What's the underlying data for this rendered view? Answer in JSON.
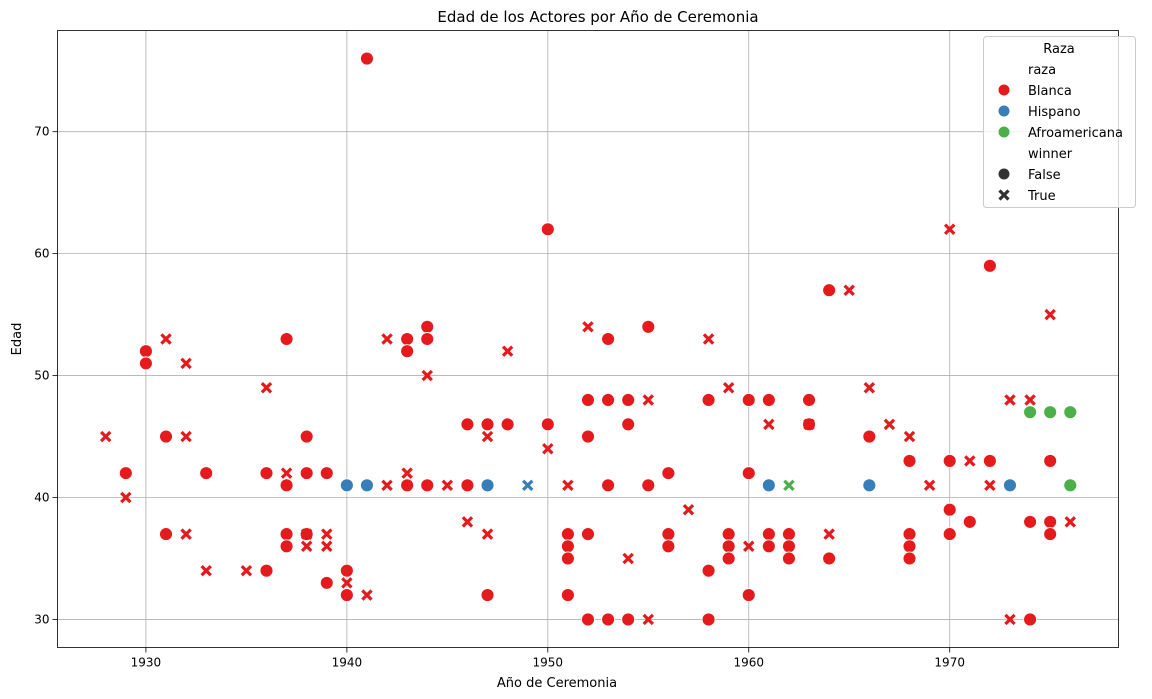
{
  "chart_data": {
    "type": "scatter",
    "title": "Edad de los Actores por Año de Ceremonia",
    "xlabel": "Año de Ceremonia",
    "ylabel": "Edad",
    "xlim": [
      1925.6,
      1978.4
    ],
    "ylim": [
      27.7,
      78.3
    ],
    "xticks": [
      1930,
      1940,
      1950,
      1960,
      1970
    ],
    "yticks": [
      30,
      40,
      50,
      60,
      70
    ],
    "grid": true,
    "legend": {
      "title": "Raza",
      "placement": "top-right",
      "hue_title": "raza",
      "style_title": "winner",
      "hue_entries": [
        {
          "label": "Blanca",
          "color": "#e41a1c"
        },
        {
          "label": "Hispano",
          "color": "#377eb8"
        },
        {
          "label": "Afroamericana",
          "color": "#4daf4a"
        }
      ],
      "style_entries": [
        {
          "label": "False",
          "marker": "circle"
        },
        {
          "label": "True",
          "marker": "x"
        }
      ]
    },
    "series": [
      {
        "name": "Blanca",
        "color": "#e41a1c",
        "points": [
          {
            "x": 1928,
            "y": 45,
            "winner": true
          },
          {
            "x": 1929,
            "y": 42,
            "winner": false
          },
          {
            "x": 1929,
            "y": 40,
            "winner": true
          },
          {
            "x": 1930,
            "y": 52,
            "winner": false
          },
          {
            "x": 1930,
            "y": 51,
            "winner": false
          },
          {
            "x": 1931,
            "y": 53,
            "winner": true
          },
          {
            "x": 1931,
            "y": 45,
            "winner": false
          },
          {
            "x": 1931,
            "y": 37,
            "winner": false
          },
          {
            "x": 1932,
            "y": 51,
            "winner": true
          },
          {
            "x": 1932,
            "y": 45,
            "winner": true
          },
          {
            "x": 1932,
            "y": 37,
            "winner": true
          },
          {
            "x": 1933,
            "y": 42,
            "winner": false
          },
          {
            "x": 1933,
            "y": 34,
            "winner": true
          },
          {
            "x": 1935,
            "y": 34,
            "winner": true
          },
          {
            "x": 1936,
            "y": 49,
            "winner": true
          },
          {
            "x": 1936,
            "y": 42,
            "winner": false
          },
          {
            "x": 1936,
            "y": 34,
            "winner": false
          },
          {
            "x": 1937,
            "y": 53,
            "winner": false
          },
          {
            "x": 1937,
            "y": 42,
            "winner": true
          },
          {
            "x": 1937,
            "y": 41,
            "winner": false
          },
          {
            "x": 1937,
            "y": 37,
            "winner": false
          },
          {
            "x": 1937,
            "y": 36,
            "winner": false
          },
          {
            "x": 1938,
            "y": 45,
            "winner": false
          },
          {
            "x": 1938,
            "y": 42,
            "winner": false
          },
          {
            "x": 1938,
            "y": 37,
            "winner": false
          },
          {
            "x": 1938,
            "y": 37,
            "winner": true
          },
          {
            "x": 1938,
            "y": 36,
            "winner": true
          },
          {
            "x": 1939,
            "y": 42,
            "winner": false
          },
          {
            "x": 1939,
            "y": 37,
            "winner": true
          },
          {
            "x": 1939,
            "y": 36,
            "winner": true
          },
          {
            "x": 1939,
            "y": 33,
            "winner": false
          },
          {
            "x": 1940,
            "y": 34,
            "winner": false
          },
          {
            "x": 1940,
            "y": 33,
            "winner": true
          },
          {
            "x": 1940,
            "y": 32,
            "winner": false
          },
          {
            "x": 1941,
            "y": 76,
            "winner": false
          },
          {
            "x": 1941,
            "y": 32,
            "winner": true
          },
          {
            "x": 1942,
            "y": 53,
            "winner": true
          },
          {
            "x": 1942,
            "y": 41,
            "winner": true
          },
          {
            "x": 1943,
            "y": 53,
            "winner": false
          },
          {
            "x": 1943,
            "y": 52,
            "winner": false
          },
          {
            "x": 1943,
            "y": 42,
            "winner": true
          },
          {
            "x": 1943,
            "y": 41,
            "winner": false
          },
          {
            "x": 1944,
            "y": 54,
            "winner": false
          },
          {
            "x": 1944,
            "y": 53,
            "winner": false
          },
          {
            "x": 1944,
            "y": 50,
            "winner": true
          },
          {
            "x": 1944,
            "y": 41,
            "winner": false
          },
          {
            "x": 1945,
            "y": 41,
            "winner": true
          },
          {
            "x": 1946,
            "y": 46,
            "winner": false
          },
          {
            "x": 1946,
            "y": 41,
            "winner": false
          },
          {
            "x": 1946,
            "y": 38,
            "winner": true
          },
          {
            "x": 1947,
            "y": 46,
            "winner": false
          },
          {
            "x": 1947,
            "y": 45,
            "winner": true
          },
          {
            "x": 1947,
            "y": 37,
            "winner": true
          },
          {
            "x": 1947,
            "y": 32,
            "winner": false
          },
          {
            "x": 1948,
            "y": 52,
            "winner": true
          },
          {
            "x": 1948,
            "y": 46,
            "winner": false
          },
          {
            "x": 1950,
            "y": 62,
            "winner": false
          },
          {
            "x": 1950,
            "y": 46,
            "winner": false
          },
          {
            "x": 1950,
            "y": 44,
            "winner": true
          },
          {
            "x": 1951,
            "y": 41,
            "winner": true
          },
          {
            "x": 1951,
            "y": 37,
            "winner": false
          },
          {
            "x": 1951,
            "y": 36,
            "winner": false
          },
          {
            "x": 1951,
            "y": 35,
            "winner": false
          },
          {
            "x": 1951,
            "y": 32,
            "winner": false
          },
          {
            "x": 1952,
            "y": 54,
            "winner": true
          },
          {
            "x": 1952,
            "y": 48,
            "winner": false
          },
          {
            "x": 1952,
            "y": 45,
            "winner": false
          },
          {
            "x": 1952,
            "y": 37,
            "winner": false
          },
          {
            "x": 1952,
            "y": 30,
            "winner": false
          },
          {
            "x": 1953,
            "y": 53,
            "winner": false
          },
          {
            "x": 1953,
            "y": 48,
            "winner": false
          },
          {
            "x": 1953,
            "y": 41,
            "winner": false
          },
          {
            "x": 1953,
            "y": 30,
            "winner": false
          },
          {
            "x": 1954,
            "y": 48,
            "winner": false
          },
          {
            "x": 1954,
            "y": 46,
            "winner": false
          },
          {
            "x": 1954,
            "y": 35,
            "winner": true
          },
          {
            "x": 1954,
            "y": 30,
            "winner": false
          },
          {
            "x": 1955,
            "y": 54,
            "winner": false
          },
          {
            "x": 1955,
            "y": 48,
            "winner": true
          },
          {
            "x": 1955,
            "y": 41,
            "winner": false
          },
          {
            "x": 1955,
            "y": 30,
            "winner": true
          },
          {
            "x": 1956,
            "y": 42,
            "winner": false
          },
          {
            "x": 1956,
            "y": 37,
            "winner": false
          },
          {
            "x": 1956,
            "y": 36,
            "winner": false
          },
          {
            "x": 1957,
            "y": 39,
            "winner": true
          },
          {
            "x": 1958,
            "y": 53,
            "winner": true
          },
          {
            "x": 1958,
            "y": 48,
            "winner": false
          },
          {
            "x": 1958,
            "y": 34,
            "winner": false
          },
          {
            "x": 1958,
            "y": 30,
            "winner": false
          },
          {
            "x": 1959,
            "y": 49,
            "winner": true
          },
          {
            "x": 1959,
            "y": 37,
            "winner": false
          },
          {
            "x": 1959,
            "y": 36,
            "winner": false
          },
          {
            "x": 1959,
            "y": 35,
            "winner": false
          },
          {
            "x": 1960,
            "y": 48,
            "winner": false
          },
          {
            "x": 1960,
            "y": 42,
            "winner": false
          },
          {
            "x": 1960,
            "y": 36,
            "winner": true
          },
          {
            "x": 1960,
            "y": 32,
            "winner": false
          },
          {
            "x": 1961,
            "y": 48,
            "winner": false
          },
          {
            "x": 1961,
            "y": 46,
            "winner": true
          },
          {
            "x": 1961,
            "y": 37,
            "winner": false
          },
          {
            "x": 1961,
            "y": 36,
            "winner": false
          },
          {
            "x": 1962,
            "y": 37,
            "winner": false
          },
          {
            "x": 1962,
            "y": 36,
            "winner": false
          },
          {
            "x": 1962,
            "y": 35,
            "winner": false
          },
          {
            "x": 1963,
            "y": 48,
            "winner": false
          },
          {
            "x": 1963,
            "y": 46,
            "winner": false
          },
          {
            "x": 1963,
            "y": 46,
            "winner": true
          },
          {
            "x": 1964,
            "y": 57,
            "winner": false
          },
          {
            "x": 1964,
            "y": 37,
            "winner": true
          },
          {
            "x": 1964,
            "y": 35,
            "winner": false
          },
          {
            "x": 1965,
            "y": 57,
            "winner": true
          },
          {
            "x": 1966,
            "y": 49,
            "winner": true
          },
          {
            "x": 1966,
            "y": 45,
            "winner": false
          },
          {
            "x": 1967,
            "y": 46,
            "winner": true
          },
          {
            "x": 1968,
            "y": 45,
            "winner": true
          },
          {
            "x": 1968,
            "y": 43,
            "winner": false
          },
          {
            "x": 1968,
            "y": 37,
            "winner": false
          },
          {
            "x": 1968,
            "y": 36,
            "winner": false
          },
          {
            "x": 1968,
            "y": 35,
            "winner": false
          },
          {
            "x": 1969,
            "y": 41,
            "winner": true
          },
          {
            "x": 1970,
            "y": 62,
            "winner": true
          },
          {
            "x": 1970,
            "y": 43,
            "winner": false
          },
          {
            "x": 1970,
            "y": 39,
            "winner": false
          },
          {
            "x": 1970,
            "y": 37,
            "winner": false
          },
          {
            "x": 1971,
            "y": 43,
            "winner": true
          },
          {
            "x": 1971,
            "y": 38,
            "winner": false
          },
          {
            "x": 1972,
            "y": 59,
            "winner": false
          },
          {
            "x": 1972,
            "y": 43,
            "winner": false
          },
          {
            "x": 1972,
            "y": 41,
            "winner": true
          },
          {
            "x": 1973,
            "y": 48,
            "winner": true
          },
          {
            "x": 1973,
            "y": 30,
            "winner": true
          },
          {
            "x": 1974,
            "y": 48,
            "winner": true
          },
          {
            "x": 1974,
            "y": 38,
            "winner": false
          },
          {
            "x": 1974,
            "y": 30,
            "winner": false
          },
          {
            "x": 1975,
            "y": 55,
            "winner": true
          },
          {
            "x": 1975,
            "y": 43,
            "winner": false
          },
          {
            "x": 1975,
            "y": 38,
            "winner": false
          },
          {
            "x": 1975,
            "y": 37,
            "winner": false
          },
          {
            "x": 1976,
            "y": 38,
            "winner": true
          }
        ]
      },
      {
        "name": "Hispano",
        "color": "#377eb8",
        "points": [
          {
            "x": 1940,
            "y": 41,
            "winner": false
          },
          {
            "x": 1941,
            "y": 41,
            "winner": false
          },
          {
            "x": 1947,
            "y": 41,
            "winner": false
          },
          {
            "x": 1949,
            "y": 41,
            "winner": true
          },
          {
            "x": 1961,
            "y": 41,
            "winner": false
          },
          {
            "x": 1966,
            "y": 41,
            "winner": false
          },
          {
            "x": 1973,
            "y": 41,
            "winner": false
          }
        ]
      },
      {
        "name": "Afroamericana",
        "color": "#4daf4a",
        "points": [
          {
            "x": 1962,
            "y": 41,
            "winner": true
          },
          {
            "x": 1974,
            "y": 47,
            "winner": false
          },
          {
            "x": 1975,
            "y": 47,
            "winner": false
          },
          {
            "x": 1976,
            "y": 47,
            "winner": false
          },
          {
            "x": 1976,
            "y": 41,
            "winner": false
          }
        ]
      }
    ]
  }
}
